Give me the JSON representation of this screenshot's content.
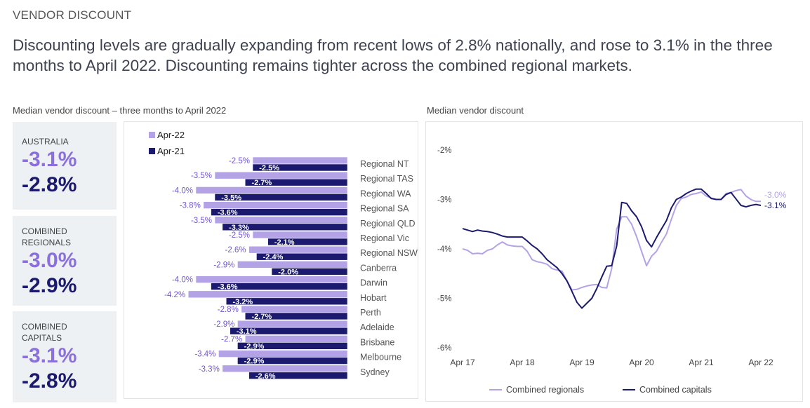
{
  "header": {
    "kicker": "VENDOR DISCOUNT",
    "headline": "Discounting levels are gradually expanding from recent lows of 2.8% nationally, and rose to 3.1% in the three months to April 2022. Discounting remains tighter across the combined regional markets."
  },
  "stats": [
    {
      "label": "AUSTRALIA",
      "current": "-3.1%",
      "previous": "-2.8%"
    },
    {
      "label": "COMBINED REGIONALS",
      "current": "-3.0%",
      "previous": "-2.9%"
    },
    {
      "label": "COMBINED CAPITALS",
      "current": "-3.1%",
      "previous": "-2.8%"
    }
  ],
  "colors": {
    "light": "#b3a3e6",
    "dark": "#1b1a6e",
    "light_text": "#7355d4",
    "dark_text": "#1b1a6e"
  },
  "chart_data": [
    {
      "type": "bar",
      "title": "Median vendor discount – three months to April 2022",
      "orientation": "horizontal",
      "legend": "top-left",
      "categories": [
        "Regional NT",
        "Regional TAS",
        "Regional WA",
        "Regional SA",
        "Regional QLD",
        "Regional Vic",
        "Regional NSW",
        "Canberra",
        "Darwin",
        "Hobart",
        "Perth",
        "Adelaide",
        "Brisbane",
        "Melbourne",
        "Sydney"
      ],
      "series": [
        {
          "name": "Apr-22",
          "values": [
            -2.5,
            -3.5,
            -4.0,
            -3.8,
            -3.5,
            -2.5,
            -2.6,
            -2.9,
            -4.0,
            -4.2,
            -2.8,
            -2.9,
            -2.7,
            -3.4,
            -3.3
          ],
          "labels": [
            "-2.5%",
            "-3.5%",
            "-4.0%",
            "-3.8%",
            "-3.5%",
            "-2.5%",
            "-2.6%",
            "-2.9%",
            "-4.0%",
            "-4.2%",
            "-2.8%",
            "-2.9%",
            "-2.7%",
            "-3.4%",
            "-3.3%"
          ]
        },
        {
          "name": "Apr-21",
          "values": [
            -2.5,
            -2.7,
            -3.5,
            -3.6,
            -3.3,
            -2.1,
            -2.4,
            -2.0,
            -3.6,
            -3.2,
            -2.7,
            -3.1,
            -2.9,
            -2.9,
            -2.6
          ],
          "labels": [
            "-2.5%",
            "-2.7%",
            "-3.5%",
            "-3.6%",
            "-3.3%",
            "-2.1%",
            "-2.4%",
            "-2.0%",
            "-3.6%",
            "-3.2%",
            "-2.7%",
            "-3.1%",
            "-2.9%",
            "-2.9%",
            "-2.6%"
          ]
        }
      ]
    },
    {
      "type": "line",
      "title": "Median vendor discount",
      "x_start": "Apr 2017",
      "x_step": "month",
      "xticks": [
        "Apr 17",
        "Apr 18",
        "Apr 19",
        "Apr 20",
        "Apr 21",
        "Apr 22"
      ],
      "yticks": [
        {
          "v": -2,
          "label": "-2%"
        },
        {
          "v": -3,
          "label": "-3%"
        },
        {
          "v": -4,
          "label": "-4%"
        },
        {
          "v": -5,
          "label": "-5%"
        },
        {
          "v": -6,
          "label": "-6%"
        }
      ],
      "ylim": [
        -6,
        -2
      ],
      "legend": "bottom",
      "series": [
        {
          "name": "Combined regionals",
          "end_label": "-3.0%",
          "values": [
            -4.0,
            -4.03,
            -4.1,
            -4.09,
            -4.1,
            -4.03,
            -4.0,
            -3.92,
            -3.86,
            -3.92,
            -3.94,
            -3.95,
            -3.95,
            -4.05,
            -4.22,
            -4.26,
            -4.28,
            -4.31,
            -4.4,
            -4.43,
            -4.45,
            -4.65,
            -4.83,
            -4.82,
            -4.78,
            -4.75,
            -4.73,
            -4.72,
            -4.78,
            -4.79,
            -4.4,
            -3.6,
            -3.35,
            -3.35,
            -3.5,
            -3.75,
            -4.05,
            -4.34,
            -4.15,
            -4.05,
            -3.87,
            -3.7,
            -3.4,
            -3.12,
            -2.98,
            -2.95,
            -2.9,
            -2.88,
            -2.85,
            -2.93,
            -2.97,
            -3.0,
            -3.0,
            -2.88,
            -2.86,
            -2.82,
            -2.8,
            -2.93,
            -3.0,
            -3.04,
            -3.04
          ]
        },
        {
          "name": "Combined capitals",
          "end_label": "-3.1%",
          "values": [
            -3.59,
            -3.62,
            -3.65,
            -3.62,
            -3.64,
            -3.65,
            -3.67,
            -3.7,
            -3.74,
            -3.76,
            -3.76,
            -3.76,
            -3.76,
            -3.84,
            -3.93,
            -4.0,
            -4.1,
            -4.22,
            -4.3,
            -4.38,
            -4.5,
            -4.65,
            -4.86,
            -5.08,
            -5.2,
            -5.1,
            -5.0,
            -4.8,
            -4.57,
            -4.35,
            -4.34,
            -3.94,
            -3.06,
            -3.08,
            -3.23,
            -3.35,
            -3.55,
            -3.83,
            -3.96,
            -3.77,
            -3.6,
            -3.43,
            -3.17,
            -3.0,
            -2.95,
            -2.88,
            -2.83,
            -2.79,
            -2.79,
            -2.88,
            -2.98,
            -3.0,
            -3.0,
            -2.9,
            -2.86,
            -2.99,
            -3.12,
            -3.15,
            -3.12,
            -3.1,
            -3.12
          ]
        }
      ]
    }
  ]
}
